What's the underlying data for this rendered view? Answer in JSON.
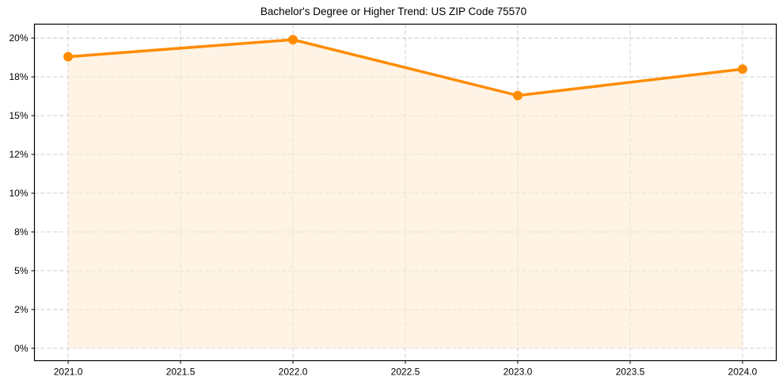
{
  "chart_data": {
    "type": "line",
    "title": "Bachelor's Degree or Higher Trend: US ZIP Code 75570",
    "xlabel": "",
    "ylabel": "",
    "x": [
      2021,
      2022,
      2023,
      2024
    ],
    "series": [
      {
        "name": "Bachelor's Degree or Higher",
        "values": [
          18.8,
          19.9,
          16.3,
          18.0
        ],
        "color": "#ff8c00",
        "fill": "#fdebd3",
        "marker": "circle"
      }
    ],
    "xticks": [
      2021.0,
      2021.5,
      2022.0,
      2022.5,
      2023.0,
      2023.5,
      2024.0
    ],
    "xtick_labels": [
      "2021.0",
      "2021.5",
      "2022.0",
      "2022.5",
      "2023.0",
      "2023.5",
      "2024.0"
    ],
    "yticks": [
      0,
      2.5,
      5,
      7.5,
      10,
      12.5,
      15,
      17.5,
      20
    ],
    "ytick_labels": [
      "0%",
      "2%",
      "5%",
      "8%",
      "10%",
      "12%",
      "15%",
      "18%",
      "20%"
    ],
    "xlim": [
      2020.85,
      2024.15
    ],
    "ylim": [
      -0.8,
      20.9
    ],
    "grid": true,
    "legend": false
  }
}
